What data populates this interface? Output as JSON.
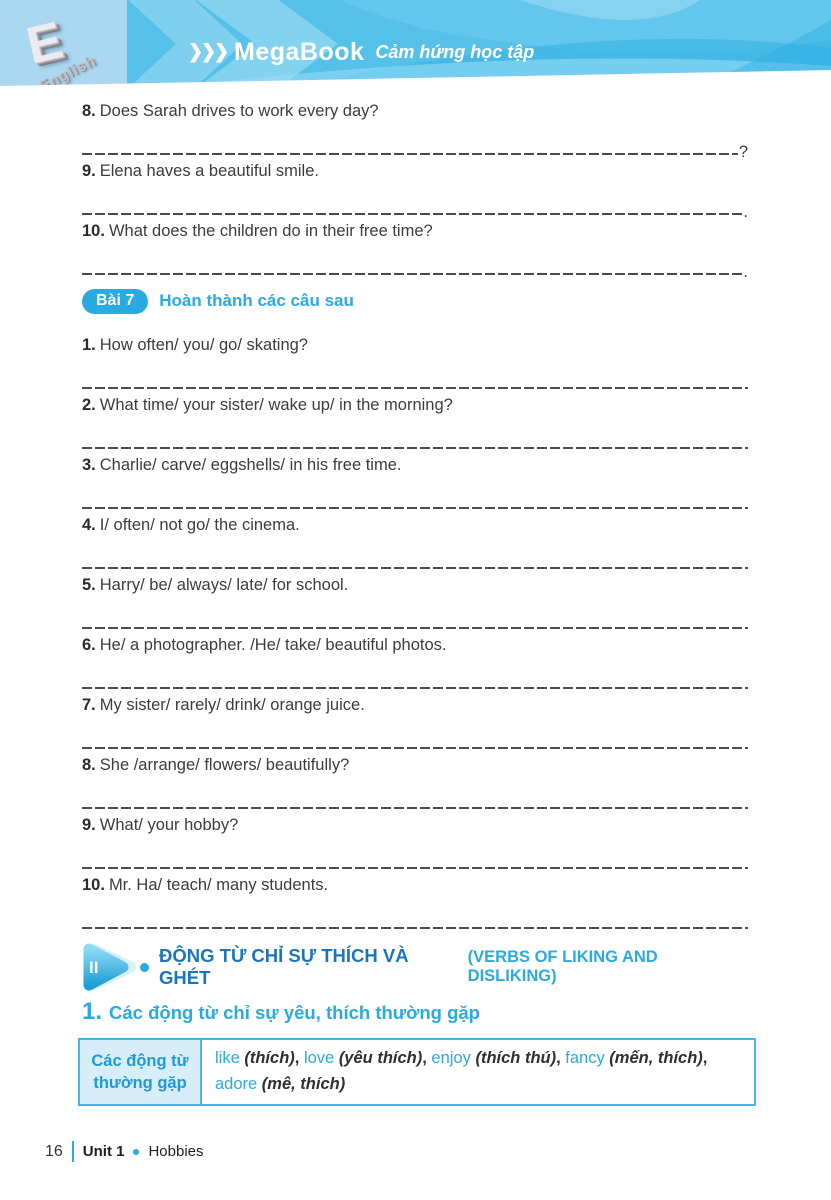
{
  "colors": {
    "accent": "#29ABE2",
    "dark_blue": "#1B75BC",
    "header_bg": "#55C1E9",
    "table_border": "#45B6E6",
    "table_cell_bg": "#D7EEF9",
    "text": "#3C3C3C"
  },
  "header": {
    "brand": "MegaBook",
    "tagline": "Cảm hứng học tập",
    "badge_letter": "E",
    "badge_label": "English"
  },
  "exercise_a": {
    "items": [
      {
        "num": "8.",
        "text": "Does Sarah drives to work every day?",
        "punct": "?"
      },
      {
        "num": "9.",
        "text": "Elena haves a beautiful smile.",
        "punct": "."
      },
      {
        "num": "10.",
        "text": "What does the children do in their free time?",
        "punct": "."
      }
    ]
  },
  "bai7": {
    "badge": "Bài 7",
    "title": "Hoàn thành các câu sau",
    "items": [
      {
        "num": "1.",
        "text": "How often/ you/ go/ skating?",
        "punct": ""
      },
      {
        "num": "2.",
        "text": "What time/ your sister/ wake up/ in the morning?",
        "punct": ""
      },
      {
        "num": "3.",
        "text": "Charlie/ carve/ eggshells/ in his free time.",
        "punct": ""
      },
      {
        "num": "4.",
        "text": "I/ often/ not go/ the cinema.",
        "punct": ""
      },
      {
        "num": "5.",
        "text": "Harry/ be/ always/ late/ for school.",
        "punct": ""
      },
      {
        "num": "6.",
        "text": "He/ a photographer. /He/ take/ beautiful photos.",
        "punct": ""
      },
      {
        "num": "7.",
        "text": "My sister/ rarely/ drink/ orange juice.",
        "punct": ""
      },
      {
        "num": "8.",
        "text": "She /arrange/ flowers/ beautifully?",
        "punct": ""
      },
      {
        "num": "9.",
        "text": "What/ your hobby?",
        "punct": ""
      },
      {
        "num": "10.",
        "text": "Mr. Ha/ teach/ many students.",
        "punct": ""
      }
    ]
  },
  "section2": {
    "numeral": "II",
    "title": "ĐỘNG TỪ CHỈ SỰ THÍCH VÀ GHÉT",
    "subtitle": "(VERBS OF LIKING AND DISLIKING)"
  },
  "subsection1": {
    "number": "1.",
    "title": "Các động từ chỉ sự yêu, thích thường gặp"
  },
  "verbs_table": {
    "header_cell": "Các động từ thường gặp",
    "verbs": [
      {
        "en": "like",
        "vi": "(thích)"
      },
      {
        "en": "love",
        "vi": "(yêu thích)"
      },
      {
        "en": "enjoy",
        "vi": "(thích thú)"
      },
      {
        "en": "fancy",
        "vi": "(mến, thích)"
      },
      {
        "en": "adore",
        "vi": "(mê, thích)"
      }
    ]
  },
  "footer": {
    "page": "16",
    "unit": "Unit 1",
    "topic": "Hobbies"
  }
}
